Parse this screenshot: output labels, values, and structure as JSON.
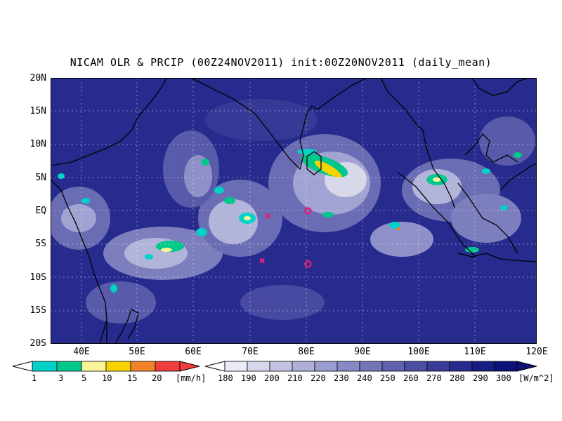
{
  "title": "NICAM OLR & PRCIP (00Z24NOV2011) init:00Z20NOV2011 (daily_mean)",
  "lat_labels": [
    "20N",
    "15N",
    "10N",
    "5N",
    "EQ",
    "5S",
    "10S",
    "15S",
    "20S"
  ],
  "lon_labels": [
    "40E",
    "50E",
    "60E",
    "70E",
    "80E",
    "90E",
    "100E",
    "110E",
    "120E"
  ],
  "colorbars": {
    "precip": {
      "ticks": [
        "1",
        "3",
        "5",
        "10",
        "15",
        "20"
      ],
      "unit": "[mm/h]",
      "colors": [
        "#00d2c8",
        "#00c88c",
        "#faf596",
        "#f5d200",
        "#f08228",
        "#f03c3c"
      ]
    },
    "olr": {
      "ticks": [
        "180",
        "190",
        "200",
        "210",
        "220",
        "230",
        "240",
        "250",
        "260",
        "270",
        "280",
        "290",
        "300"
      ],
      "unit": "[W/m^2]",
      "colors": [
        "#ebebf5",
        "#d7d7ec",
        "#c3c3e3",
        "#afb0da",
        "#9b9ccf",
        "#8788c4",
        "#7375b9",
        "#5f61ae",
        "#4b4ea3",
        "#383c98",
        "#262b8d",
        "#171d82",
        "#0c1178"
      ]
    }
  },
  "markers": [
    {
      "symbol": "x",
      "lon": 73.0,
      "lat": -0.8,
      "color": "#e0207a"
    },
    {
      "symbol": "x",
      "lon": 72.0,
      "lat": -7.5,
      "color": "#e0207a"
    },
    {
      "symbol": "o",
      "lon": 80.0,
      "lat": 0.0,
      "color": "#e0207a"
    },
    {
      "symbol": "o",
      "lon": 80.0,
      "lat": -8.0,
      "color": "#e0207a"
    }
  ]
}
